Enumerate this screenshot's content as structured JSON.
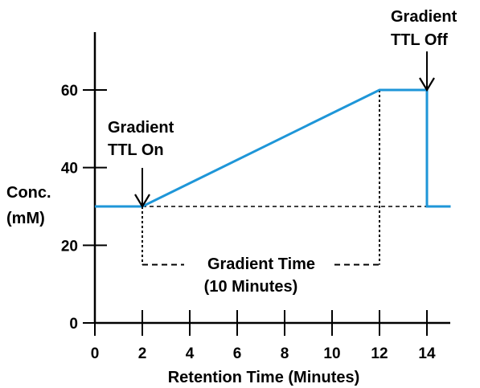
{
  "chart_data": {
    "type": "line",
    "title": "",
    "xlabel": "Retention Time (Minutes)",
    "ylabel_lines": [
      "Conc.",
      "(mM)"
    ],
    "xlim": [
      0,
      15
    ],
    "ylim": [
      0,
      75
    ],
    "x_ticks": [
      0,
      2,
      4,
      6,
      8,
      10,
      12,
      14
    ],
    "y_ticks": [
      0,
      20,
      40,
      60
    ],
    "grid": false,
    "series": [
      {
        "color": "#1e96d8",
        "points": [
          [
            0,
            30
          ],
          [
            2,
            30
          ],
          [
            12,
            60
          ],
          [
            14,
            60
          ],
          [
            14,
            30
          ],
          [
            15,
            30
          ]
        ]
      }
    ],
    "baseline": {
      "style": "dashed",
      "color": "#000000",
      "points": [
        [
          2,
          30
        ],
        [
          15,
          30
        ]
      ]
    },
    "gradient_bracket": {
      "style": "dashed",
      "x_start": 2,
      "x_end": 12,
      "y": 15,
      "y_top_start": 30,
      "y_top_end": 60
    },
    "annotations": [
      {
        "id": "ttl-on",
        "lines": [
          "Gradient",
          "TTL On"
        ],
        "arrow_to": [
          2,
          30
        ]
      },
      {
        "id": "ttl-off",
        "lines": [
          "Gradient",
          "TTL Off"
        ],
        "arrow_to": [
          14,
          60
        ]
      },
      {
        "id": "gradient-time",
        "lines": [
          "Gradient Time",
          "(10 Minutes)"
        ]
      }
    ]
  }
}
